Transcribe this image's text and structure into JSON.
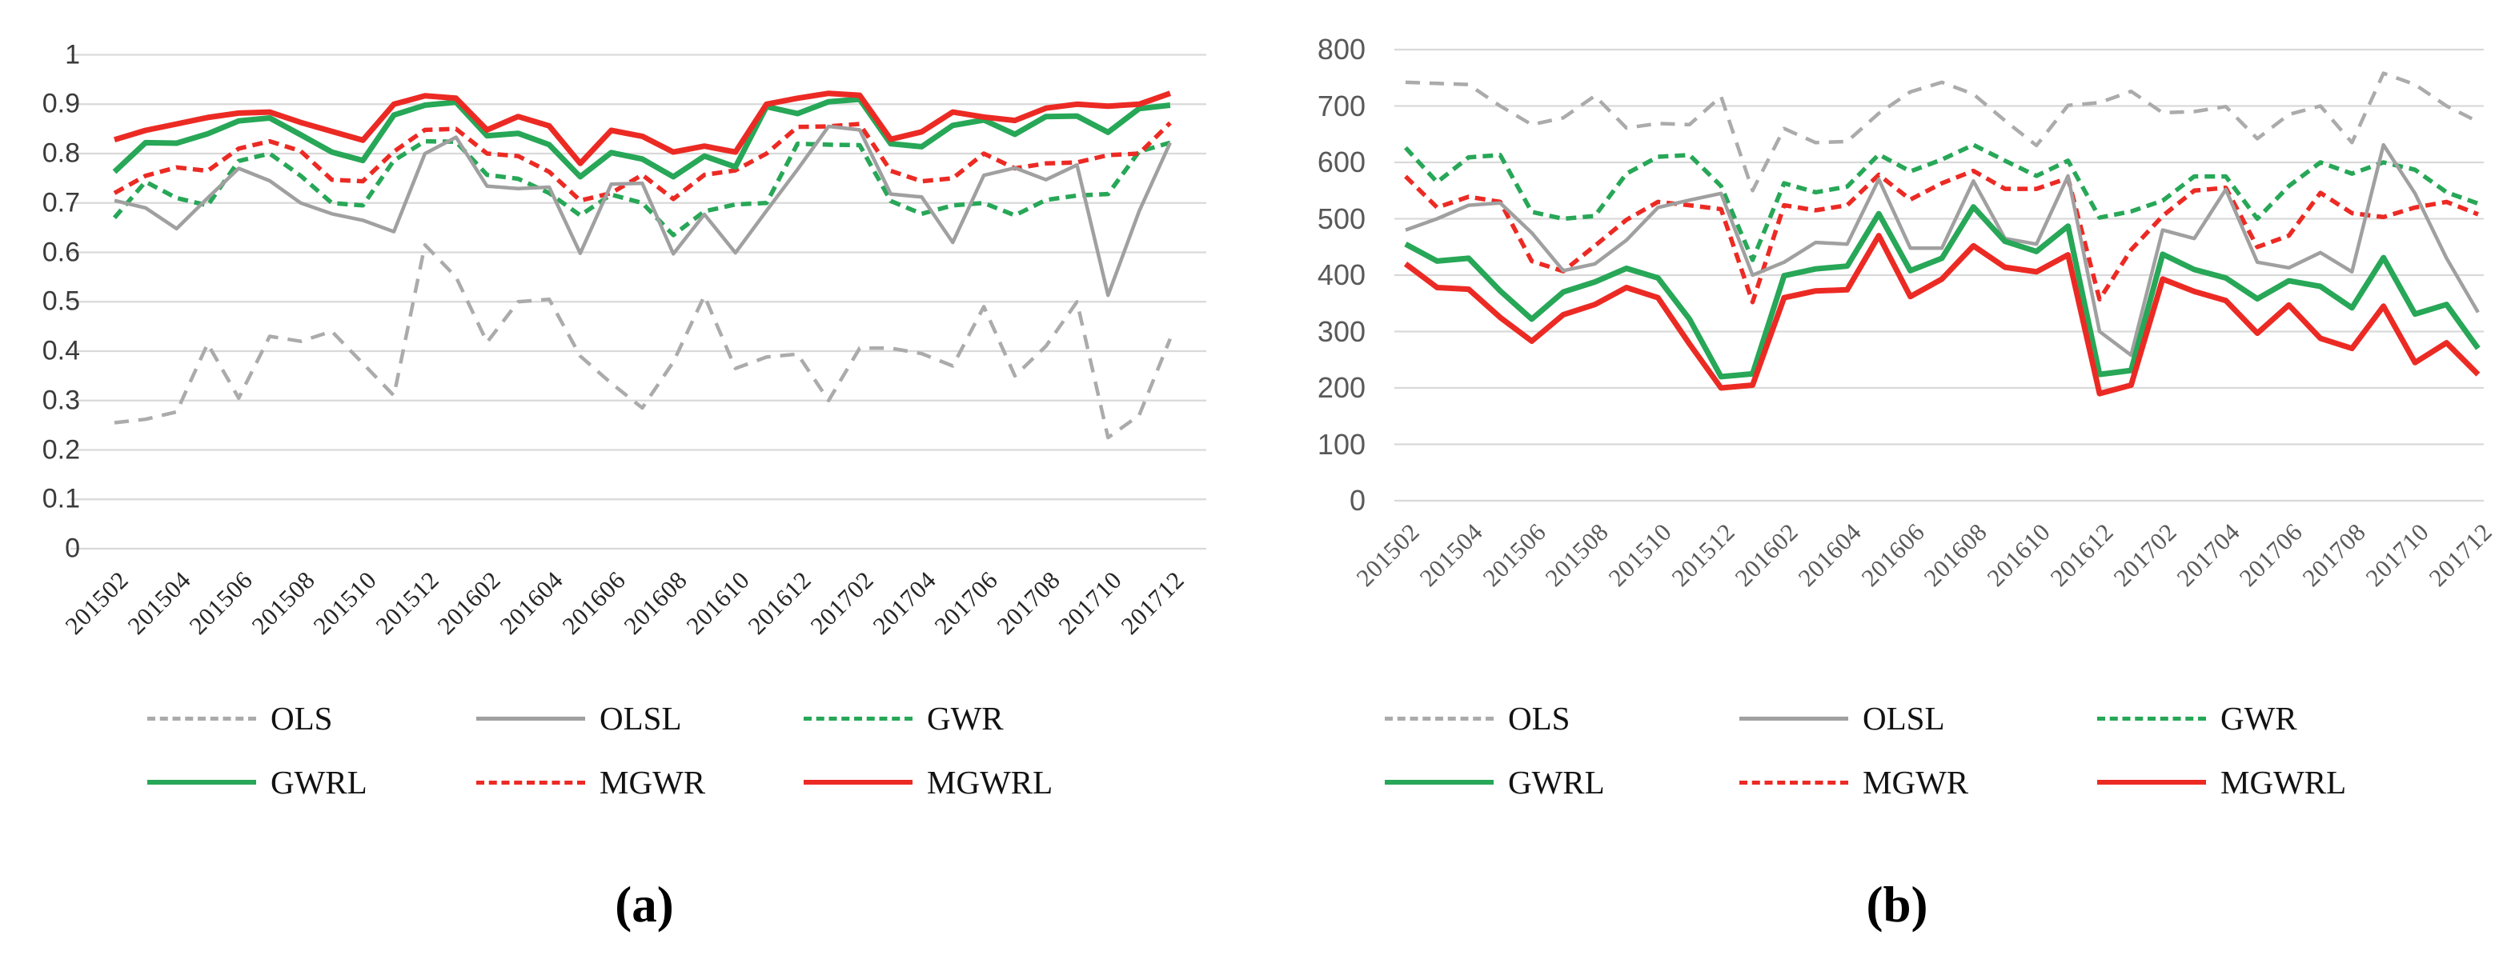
{
  "captions": {
    "a": "(a)",
    "b": "(b)"
  },
  "colors": {
    "red": "#ec2a24",
    "green": "#27a757",
    "gray_solid": "#a0a0a0",
    "gray_dash": "#ababab",
    "gridline": "#d9d9d9"
  },
  "chart_data": [
    {
      "id": "a",
      "type": "line",
      "title": "",
      "xlabel": "",
      "ylabel": "",
      "grid": "horizontal",
      "legend_position": "bottom",
      "x_categories": [
        "201502",
        "201503",
        "201504",
        "201505",
        "201506",
        "201507",
        "201508",
        "201509",
        "201510",
        "201511",
        "201512",
        "201601",
        "201602",
        "201603",
        "201604",
        "201605",
        "201606",
        "201607",
        "201608",
        "201609",
        "201610",
        "201611",
        "201612",
        "201701",
        "201702",
        "201703",
        "201704",
        "201705",
        "201706",
        "201707",
        "201708",
        "201709",
        "201710",
        "201711",
        "201712"
      ],
      "x_tick_labels": [
        "201502",
        "201504",
        "201506",
        "201508",
        "201510",
        "201512",
        "201602",
        "201604",
        "201606",
        "201608",
        "201610",
        "201612",
        "201702",
        "201704",
        "201706",
        "201708",
        "201710",
        "201712"
      ],
      "y_axis": {
        "min": 0,
        "max": 1,
        "step": 0.1,
        "tick_labels": [
          "1",
          "0.9",
          "0.8",
          "0.7",
          "0.6",
          "0.5",
          "0.4",
          "0.3",
          "0.2",
          "0.1",
          "0"
        ]
      },
      "series": [
        {
          "name": "OLS",
          "color": "#ababab",
          "style": "dashed",
          "values": [
            0.255,
            0.262,
            0.277,
            0.415,
            0.305,
            0.43,
            0.42,
            0.44,
            0.375,
            0.31,
            0.615,
            0.55,
            0.418,
            0.5,
            0.505,
            0.39,
            0.335,
            0.285,
            0.378,
            0.512,
            0.365,
            0.388,
            0.394,
            0.3,
            0.406,
            0.406,
            0.395,
            0.37,
            0.49,
            0.35,
            0.41,
            0.5,
            0.225,
            0.27,
            0.425
          ]
        },
        {
          "name": "OLSL",
          "color": "#a0a0a0",
          "style": "solid",
          "values": [
            0.705,
            0.69,
            0.648,
            0.71,
            0.77,
            0.745,
            0.7,
            0.678,
            0.665,
            0.642,
            0.8,
            0.833,
            0.734,
            0.729,
            0.732,
            0.598,
            0.738,
            0.74,
            0.597,
            0.677,
            0.599,
            0.684,
            0.768,
            0.855,
            0.848,
            0.718,
            0.712,
            0.62,
            0.756,
            0.771,
            0.747,
            0.777,
            0.513,
            0.683,
            0.822
          ]
        },
        {
          "name": "GWR",
          "color": "#27a757",
          "style": "dashed",
          "values": [
            0.67,
            0.743,
            0.71,
            0.695,
            0.785,
            0.8,
            0.755,
            0.7,
            0.695,
            0.786,
            0.825,
            0.824,
            0.757,
            0.749,
            0.72,
            0.675,
            0.717,
            0.7,
            0.635,
            0.683,
            0.697,
            0.7,
            0.82,
            0.818,
            0.817,
            0.704,
            0.678,
            0.695,
            0.7,
            0.675,
            0.706,
            0.715,
            0.718,
            0.804,
            0.822
          ]
        },
        {
          "name": "GWRL",
          "color": "#27a757",
          "style": "solid",
          "values": [
            0.763,
            0.822,
            0.821,
            0.84,
            0.866,
            0.872,
            0.838,
            0.803,
            0.786,
            0.878,
            0.898,
            0.904,
            0.836,
            0.841,
            0.818,
            0.753,
            0.802,
            0.789,
            0.753,
            0.795,
            0.773,
            0.895,
            0.881,
            0.905,
            0.91,
            0.82,
            0.814,
            0.857,
            0.868,
            0.839,
            0.875,
            0.876,
            0.843,
            0.891,
            0.898
          ]
        },
        {
          "name": "MGWR",
          "color": "#ec2a24",
          "style": "dashed",
          "values": [
            0.72,
            0.755,
            0.772,
            0.765,
            0.81,
            0.825,
            0.805,
            0.747,
            0.744,
            0.804,
            0.848,
            0.85,
            0.8,
            0.795,
            0.763,
            0.705,
            0.72,
            0.757,
            0.708,
            0.757,
            0.766,
            0.8,
            0.854,
            0.855,
            0.86,
            0.765,
            0.744,
            0.75,
            0.8,
            0.77,
            0.78,
            0.782,
            0.797,
            0.8,
            0.862
          ]
        },
        {
          "name": "MGWRL",
          "color": "#ec2a24",
          "style": "solid",
          "values": [
            0.828,
            0.847,
            0.86,
            0.873,
            0.882,
            0.884,
            0.863,
            0.845,
            0.827,
            0.9,
            0.917,
            0.912,
            0.848,
            0.875,
            0.856,
            0.78,
            0.847,
            0.835,
            0.803,
            0.815,
            0.803,
            0.9,
            0.912,
            0.922,
            0.918,
            0.829,
            0.844,
            0.884,
            0.874,
            0.867,
            0.892,
            0.9,
            0.896,
            0.9,
            0.922
          ]
        }
      ]
    },
    {
      "id": "b",
      "type": "line",
      "title": "",
      "xlabel": "",
      "ylabel": "",
      "grid": "horizontal",
      "legend_position": "bottom",
      "x_categories": [
        "201502",
        "201503",
        "201504",
        "201505",
        "201506",
        "201507",
        "201508",
        "201509",
        "201510",
        "201511",
        "201512",
        "201601",
        "201602",
        "201603",
        "201604",
        "201605",
        "201606",
        "201607",
        "201608",
        "201609",
        "201610",
        "201611",
        "201612",
        "201701",
        "201702",
        "201703",
        "201704",
        "201705",
        "201706",
        "201707",
        "201708",
        "201709",
        "201710",
        "201711",
        "201712"
      ],
      "x_tick_labels": [
        "201502",
        "201504",
        "201506",
        "201508",
        "201510",
        "201512",
        "201602",
        "201604",
        "201606",
        "201608",
        "201610",
        "201612",
        "201702",
        "201704",
        "201706",
        "201708",
        "201710",
        "201712"
      ],
      "y_axis": {
        "min": 0,
        "max": 800,
        "step": 100,
        "tick_labels": [
          "800",
          "700",
          "600",
          "500",
          "400",
          "300",
          "200",
          "100",
          "0"
        ]
      },
      "series": [
        {
          "name": "OLS",
          "color": "#ababab",
          "style": "dashed",
          "values": [
            742,
            740,
            738,
            700,
            667,
            679,
            718,
            661,
            669,
            667,
            717,
            550,
            660,
            635,
            637,
            687,
            725,
            742,
            721,
            674,
            630,
            701,
            706,
            726,
            688,
            690,
            699,
            642,
            685,
            700,
            635,
            758,
            738,
            700,
            672
          ]
        },
        {
          "name": "OLSL",
          "color": "#a0a0a0",
          "style": "solid",
          "values": [
            480,
            500,
            524,
            528,
            475,
            408,
            420,
            462,
            520,
            533,
            545,
            400,
            423,
            458,
            455,
            570,
            448,
            448,
            567,
            465,
            455,
            576,
            300,
            258,
            480,
            465,
            552,
            423,
            413,
            440,
            406,
            631,
            545,
            430,
            334
          ]
        },
        {
          "name": "GWR",
          "color": "#27a757",
          "style": "dashed",
          "values": [
            626,
            565,
            609,
            613,
            512,
            500,
            505,
            580,
            610,
            613,
            558,
            427,
            563,
            547,
            557,
            614,
            584,
            605,
            631,
            603,
            576,
            603,
            502,
            513,
            532,
            575,
            575,
            500,
            558,
            600,
            580,
            600,
            587,
            547,
            527
          ]
        },
        {
          "name": "GWRL",
          "color": "#27a757",
          "style": "solid",
          "values": [
            455,
            425,
            430,
            372,
            322,
            370,
            388,
            412,
            395,
            322,
            220,
            225,
            399,
            411,
            416,
            509,
            408,
            430,
            521,
            460,
            442,
            487,
            224,
            231,
            437,
            410,
            395,
            358,
            390,
            380,
            342,
            431,
            331,
            348,
            270
          ]
        },
        {
          "name": "MGWR",
          "color": "#ec2a24",
          "style": "dashed",
          "values": [
            575,
            520,
            539,
            530,
            425,
            407,
            452,
            498,
            530,
            524,
            517,
            352,
            524,
            515,
            524,
            578,
            534,
            563,
            585,
            553,
            553,
            572,
            357,
            445,
            505,
            550,
            555,
            450,
            470,
            546,
            510,
            503,
            520,
            530,
            508
          ]
        },
        {
          "name": "MGWRL",
          "color": "#ec2a24",
          "style": "solid",
          "values": [
            420,
            378,
            375,
            325,
            283,
            330,
            348,
            378,
            360,
            278,
            200,
            205,
            360,
            372,
            374,
            470,
            362,
            393,
            452,
            414,
            406,
            436,
            190,
            205,
            393,
            371,
            355,
            297,
            347,
            288,
            270,
            345,
            245,
            280,
            224
          ]
        }
      ]
    }
  ]
}
